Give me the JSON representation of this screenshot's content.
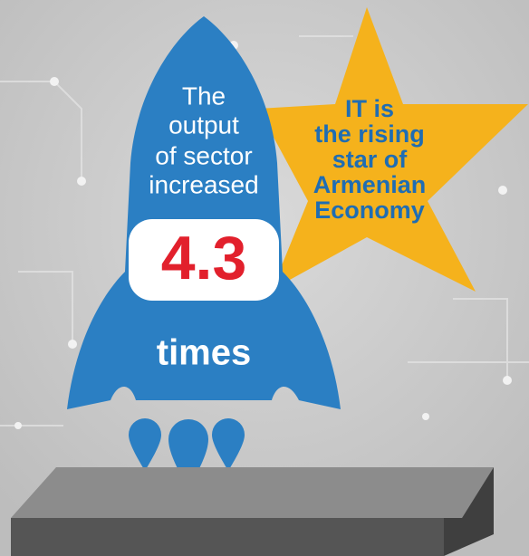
{
  "rocket": {
    "lines": [
      "The",
      "output",
      "of sector",
      "increased"
    ],
    "value": 4.3,
    "unit": "times"
  },
  "star": {
    "lines": [
      "IT is",
      "the rising",
      "star of",
      "Armenian",
      "Economy"
    ]
  }
}
